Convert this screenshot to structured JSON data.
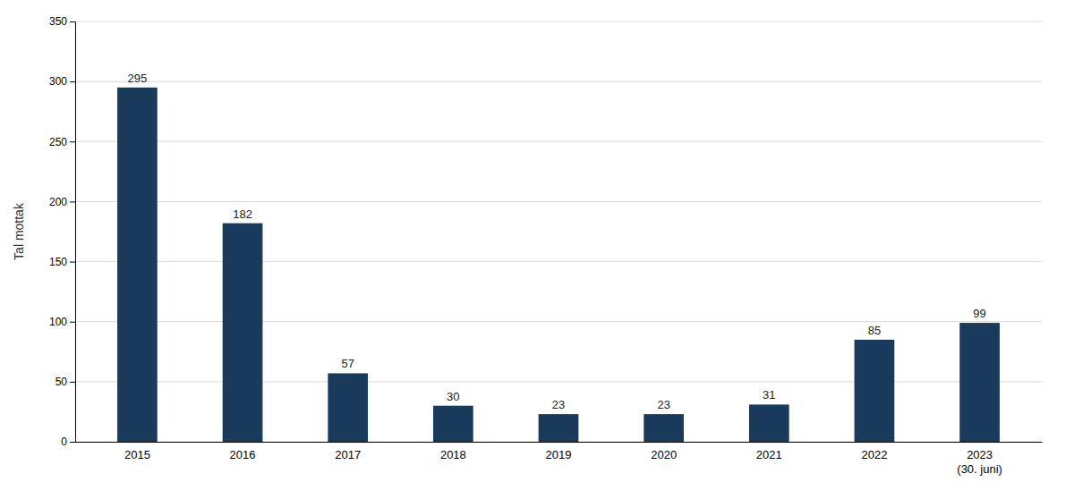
{
  "chart_data": {
    "type": "bar",
    "ylabel": "Tal mottak",
    "categories": [
      "2015",
      "2016",
      "2017",
      "2018",
      "2019",
      "2020",
      "2021",
      "2022",
      "2023\n(30. juni)"
    ],
    "values": [
      295,
      182,
      57,
      30,
      23,
      23,
      31,
      85,
      99
    ],
    "color": "#1a3a5c",
    "ylim": [
      0,
      350
    ],
    "yticks": [
      0,
      50,
      100,
      150,
      200,
      250,
      300,
      350
    ],
    "grid": true,
    "data_labels": true
  }
}
